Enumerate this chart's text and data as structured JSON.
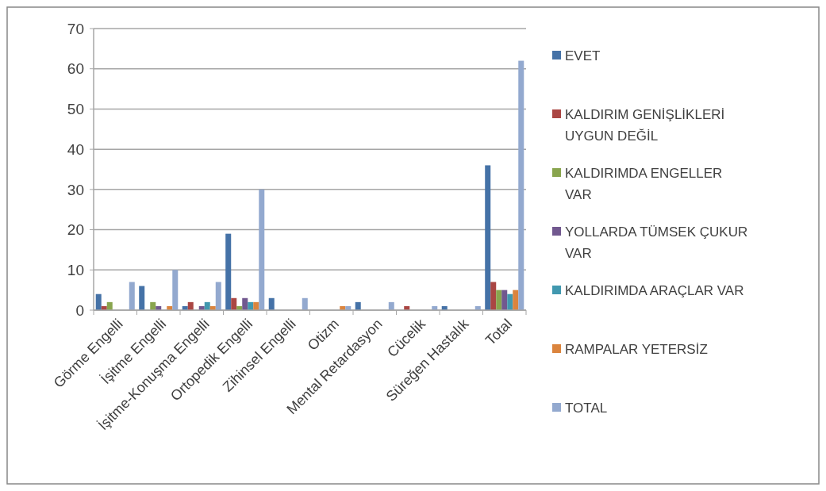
{
  "chart_data": {
    "type": "bar",
    "categories": [
      "Görme Engelli",
      "İşitme Engelli",
      "İşitme-Konuşma Engelli",
      "Ortopedik Engelli",
      "Zihinsel Engelli",
      "Otizm",
      "Mental Retardasyon",
      "Cücelik",
      "Süreğen Hastalık",
      "Total"
    ],
    "series": [
      {
        "name": "EVET",
        "color": "#4572a7",
        "values": [
          4,
          6,
          1,
          19,
          3,
          0,
          2,
          0,
          1,
          36
        ]
      },
      {
        "name": "KALDIRIM GENİŞLİKLERİ UYGUN DEĞİL",
        "color": "#aa4643",
        "values": [
          1,
          0,
          2,
          3,
          0,
          0,
          0,
          1,
          0,
          7
        ]
      },
      {
        "name": "KALDIRIMDA ENGELLER VAR",
        "color": "#89a54e",
        "values": [
          2,
          2,
          0,
          1,
          0,
          0,
          0,
          0,
          0,
          5
        ]
      },
      {
        "name": "YOLLARDA TÜMSEK ÇUKUR VAR",
        "color": "#71588f",
        "values": [
          0,
          1,
          1,
          3,
          0,
          0,
          0,
          0,
          0,
          5
        ]
      },
      {
        "name": "KALDIRIMDA ARAÇLAR VAR",
        "color": "#4198af",
        "values": [
          0,
          0,
          2,
          2,
          0,
          0,
          0,
          0,
          0,
          4
        ]
      },
      {
        "name": "RAMPALAR YETERSİZ",
        "color": "#db843d",
        "values": [
          0,
          1,
          1,
          2,
          0,
          1,
          0,
          0,
          0,
          5
        ]
      },
      {
        "name": "TOTAL",
        "color": "#93a9cf",
        "values": [
          7,
          10,
          7,
          30,
          3,
          1,
          2,
          1,
          1,
          62
        ]
      }
    ],
    "ylim": [
      0,
      70
    ],
    "yticks": [
      0,
      10,
      20,
      30,
      40,
      50,
      60,
      70
    ],
    "grid": "y",
    "legend": "right"
  }
}
